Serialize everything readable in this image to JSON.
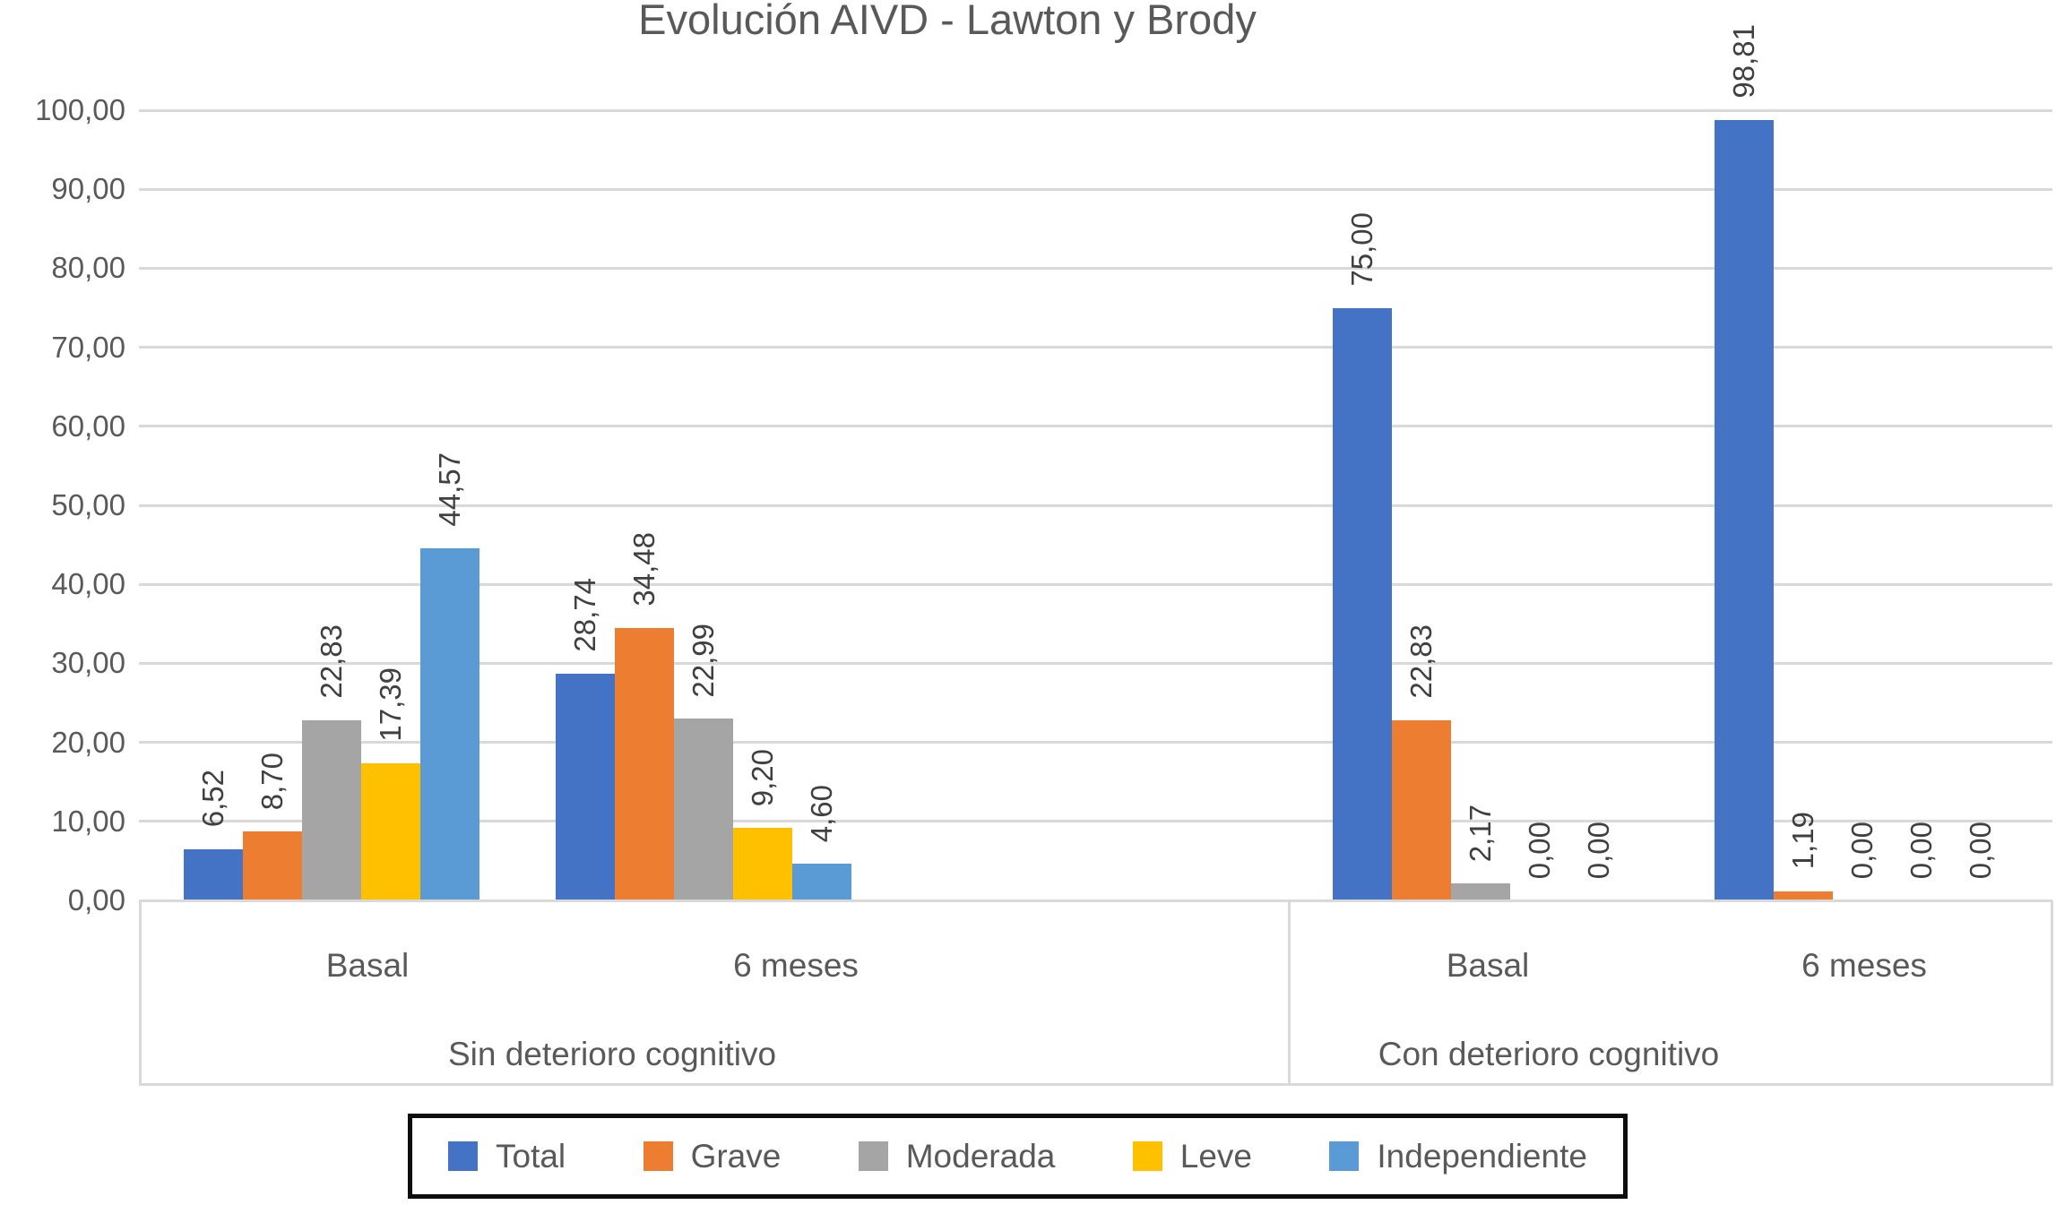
{
  "chart_data": {
    "type": "bar",
    "title": "Evolución AIVD - Lawton y Brody",
    "y_axis": {
      "min": 0,
      "max": 100,
      "step": 10,
      "tick_labels": [
        "0,00",
        "10,00",
        "20,00",
        "30,00",
        "40,00",
        "50,00",
        "60,00",
        "70,00",
        "80,00",
        "90,00",
        "100,00"
      ]
    },
    "x_axis": {
      "groups": [
        {
          "label": "Sin deterioro cognitivo",
          "categories": [
            "Basal",
            "6 meses"
          ]
        },
        {
          "label": "Con deterioro cognitivo",
          "categories": [
            "Basal",
            "6 meses"
          ]
        }
      ]
    },
    "categories": [
      "Basal",
      "6 meses",
      "Basal",
      "6 meses"
    ],
    "series": [
      {
        "name": "Total",
        "color": "#4472C4",
        "values": [
          6.52,
          28.74,
          75.0,
          98.81
        ],
        "labels": [
          "6,52",
          "28,74",
          "75,00",
          "98,81"
        ]
      },
      {
        "name": "Grave",
        "color": "#ED7D31",
        "values": [
          8.7,
          34.48,
          22.83,
          1.19
        ],
        "labels": [
          "8,70",
          "34,48",
          "22,83",
          "1,19"
        ]
      },
      {
        "name": "Moderada",
        "color": "#A5A5A5",
        "values": [
          22.83,
          22.99,
          2.17,
          0.0
        ],
        "labels": [
          "22,83",
          "22,99",
          "2,17",
          "0,00"
        ]
      },
      {
        "name": "Leve",
        "color": "#FFC000",
        "values": [
          17.39,
          9.2,
          0.0,
          0.0
        ],
        "labels": [
          "17,39",
          "9,20",
          "0,00",
          "0,00"
        ]
      },
      {
        "name": "Independiente",
        "color": "#5B9BD5",
        "values": [
          44.57,
          4.6,
          0.0,
          0.0
        ],
        "labels": [
          "44,57",
          "4,60",
          "0,00",
          "0,00"
        ]
      }
    ],
    "legend": {
      "position": "bottom",
      "entries": [
        "Total",
        "Grave",
        "Moderada",
        "Leve",
        "Independiente"
      ]
    },
    "gridlines": true,
    "style_colors": {
      "gridline": "#D9D9D9",
      "axis_text": "#595959",
      "value_label_text": "#404040",
      "legend_border": "#0D0D0D"
    }
  }
}
